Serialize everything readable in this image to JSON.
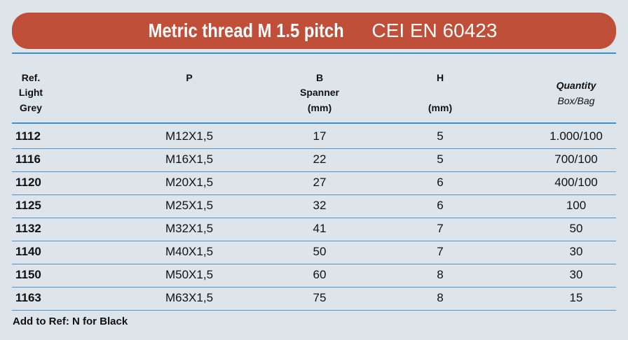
{
  "header": {
    "title": "Metric thread M 1.5 pitch",
    "standard": "CEI EN 60423"
  },
  "table": {
    "headers": [
      [
        "Ref.",
        "Light",
        "Grey"
      ],
      [
        "P"
      ],
      [
        "B",
        "Spanner",
        "(mm)"
      ],
      [
        "H",
        "(mm)"
      ],
      [
        "Quantity",
        "Box/Bag"
      ]
    ],
    "rows": [
      [
        "1112",
        "M12X1,5",
        "17",
        "5",
        "1.000/100"
      ],
      [
        "1116",
        "M16X1,5",
        "22",
        "5",
        "700/100"
      ],
      [
        "1120",
        "M20X1,5",
        "27",
        "6",
        "400/100"
      ],
      [
        "1125",
        "M25X1,5",
        "32",
        "6",
        "100"
      ],
      [
        "1132",
        "M32X1,5",
        "41",
        "7",
        "50"
      ],
      [
        "1140",
        "M40X1,5",
        "50",
        "7",
        "30"
      ],
      [
        "1150",
        "M50X1,5",
        "60",
        "8",
        "30"
      ],
      [
        "1163",
        "M63X1,5",
        "75",
        "8",
        "15"
      ]
    ]
  },
  "footer": {
    "note": "Add to Ref: N for Black"
  }
}
